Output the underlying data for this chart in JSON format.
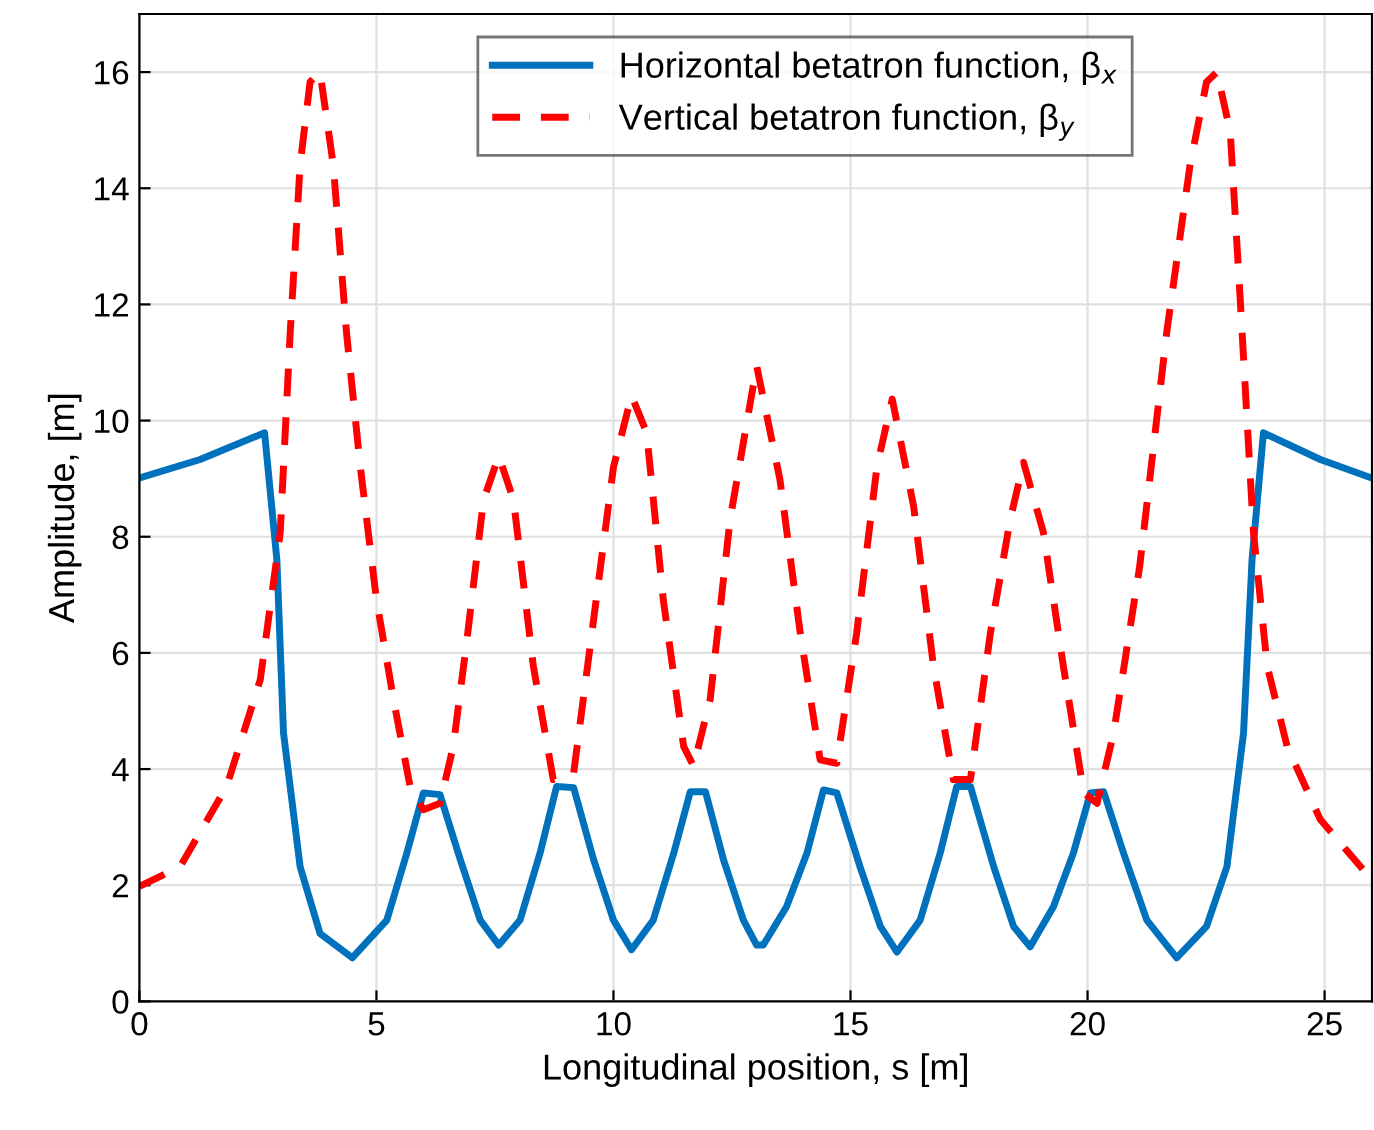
{
  "chart_data": {
    "type": "line",
    "xlabel": "Longitudinal position, s [m]",
    "ylabel": "Amplitude, [m]",
    "xlim": [
      0,
      26
    ],
    "xticks": [
      0,
      5,
      10,
      15,
      20,
      25
    ],
    "ylim": [
      0,
      17
    ],
    "yticks": [
      0,
      2,
      4,
      6,
      8,
      10,
      12,
      14,
      16
    ],
    "grid": true,
    "legend": "top",
    "marker": "none",
    "series": [
      {
        "name": "Horizontal betatron function, β$_{x}$",
        "color": "#0072bd",
        "line_style": "solid",
        "x": [
          0,
          1.28,
          2.64,
          2.9,
          3.04,
          3.39,
          3.81,
          4.49,
          5.22,
          5.64,
          5.99,
          6.34,
          6.77,
          7.19,
          7.58,
          8.03,
          8.45,
          8.8,
          9.16,
          9.58,
          10.0,
          10.38,
          10.84,
          11.27,
          11.62,
          11.94,
          12.32,
          12.74,
          13.02,
          13.16,
          13.65,
          14.08,
          14.43,
          14.71,
          15.2,
          15.63,
          15.98,
          16.47,
          16.89,
          17.24,
          17.53,
          18.02,
          18.44,
          18.79,
          19.28,
          19.7,
          20.06,
          20.34,
          20.76,
          21.25,
          21.88,
          22.51,
          22.94,
          23.29,
          23.47,
          23.71,
          24.91,
          26.0
        ],
        "values": [
          9.01,
          9.33,
          9.79,
          7.6,
          4.62,
          2.32,
          1.17,
          0.75,
          1.4,
          2.55,
          3.59,
          3.56,
          2.44,
          1.4,
          0.97,
          1.4,
          2.55,
          3.7,
          3.68,
          2.44,
          1.4,
          0.89,
          1.4,
          2.55,
          3.61,
          3.61,
          2.44,
          1.4,
          0.97,
          0.97,
          1.63,
          2.55,
          3.64,
          3.59,
          2.32,
          1.29,
          0.85,
          1.4,
          2.55,
          3.7,
          3.7,
          2.32,
          1.29,
          0.94,
          1.63,
          2.55,
          3.59,
          3.61,
          2.55,
          1.4,
          0.75,
          1.29,
          2.32,
          4.62,
          7.61,
          9.79,
          9.33,
          9.01
        ]
      },
      {
        "name": "Vertical betatron function, β$_{y}$",
        "color": "#ff0000",
        "line_style": "dashed",
        "x": [
          0,
          0.86,
          1.84,
          2.55,
          2.97,
          3.18,
          3.39,
          3.6,
          3.81,
          4.09,
          4.37,
          4.66,
          5.0,
          5.36,
          5.71,
          5.99,
          6.34,
          6.62,
          6.91,
          7.26,
          7.58,
          7.89,
          8.31,
          8.73,
          9.16,
          9.58,
          10.0,
          10.38,
          10.7,
          11.05,
          11.48,
          11.69,
          12.04,
          12.46,
          13.02,
          13.51,
          13.94,
          14.36,
          14.71,
          15.13,
          15.56,
          15.88,
          16.33,
          16.75,
          17.17,
          17.53,
          17.95,
          18.37,
          18.65,
          19.07,
          19.49,
          19.92,
          20.2,
          20.55,
          21.1,
          21.67,
          22.16,
          22.51,
          22.73,
          23.01,
          23.22,
          23.5,
          23.79,
          24.21,
          24.91,
          26.0
        ],
        "values": [
          1.98,
          2.32,
          3.7,
          5.54,
          8.07,
          11.5,
          14.4,
          15.83,
          16.0,
          14.4,
          11.5,
          9.2,
          6.92,
          5.2,
          3.7,
          3.3,
          3.41,
          4.39,
          6.23,
          8.64,
          9.39,
          8.64,
          5.77,
          3.82,
          3.93,
          6.57,
          9.2,
          10.43,
          9.79,
          6.92,
          4.39,
          4.05,
          5.2,
          8.3,
          10.94,
          8.99,
          6.34,
          4.16,
          4.1,
          6.34,
          9.22,
          10.37,
          8.53,
          5.77,
          3.82,
          3.82,
          6.34,
          8.3,
          9.28,
          8.07,
          5.77,
          3.59,
          3.41,
          4.62,
          7.49,
          11.52,
          14.39,
          15.83,
          16.0,
          14.97,
          12.09,
          8.07,
          5.77,
          4.39,
          3.13,
          2.09
        ]
      }
    ]
  }
}
